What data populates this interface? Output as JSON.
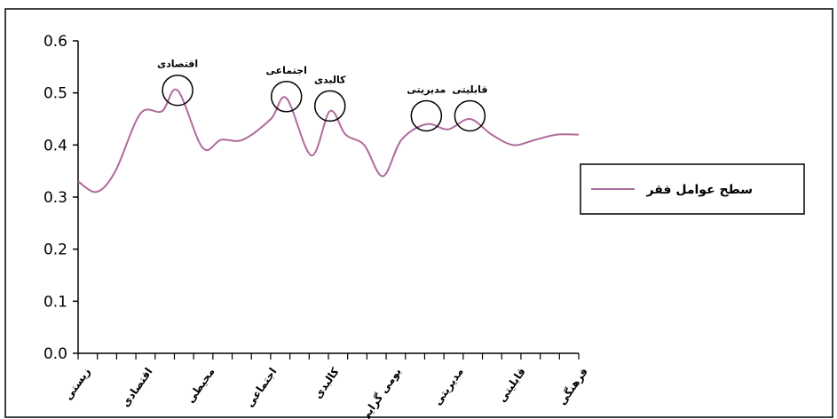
{
  "chart_data": {
    "type": "line",
    "title": "",
    "xlabel": "",
    "ylabel": "",
    "ylim": [
      0,
      0.6
    ],
    "yticks": [
      0,
      0.1,
      0.2,
      0.3,
      0.4,
      0.5,
      0.6
    ],
    "categories": [
      "زیستی",
      "اقتصادی",
      "محیطی",
      "اجتماعی",
      "کالبدی",
      "بومی گرایی",
      "مدیریتی",
      "قابلیتی",
      "فرهنگی"
    ],
    "series": [
      {
        "name": "سطح عوامل فقر",
        "color": "#b06a9a",
        "x": [
          0,
          0.3,
          0.6,
          1.0,
          1.35,
          1.6,
          2.0,
          2.3,
          2.65,
          3.1,
          3.35,
          3.75,
          4.05,
          4.3,
          4.6,
          4.9,
          5.2,
          5.6,
          5.95,
          6.3,
          6.65,
          7.0,
          7.35,
          7.7,
          8.05
        ],
        "y": [
          0.33,
          0.31,
          0.35,
          0.46,
          0.465,
          0.505,
          0.395,
          0.41,
          0.41,
          0.45,
          0.49,
          0.38,
          0.465,
          0.42,
          0.4,
          0.34,
          0.41,
          0.44,
          0.43,
          0.45,
          0.42,
          0.4,
          0.41,
          0.42,
          0.42
        ]
      }
    ],
    "annotations": [
      {
        "label": "اقتصادی",
        "x": 1.6,
        "y": 0.505
      },
      {
        "label": "اجتماعی",
        "x": 3.35,
        "y": 0.493
      },
      {
        "label": "کالبدی",
        "x": 4.05,
        "y": 0.475
      },
      {
        "label": "مدیریتی",
        "x": 5.6,
        "y": 0.456
      },
      {
        "label": "قابلیتی",
        "x": 6.3,
        "y": 0.456
      }
    ],
    "legend_position": "right",
    "grid": false
  }
}
